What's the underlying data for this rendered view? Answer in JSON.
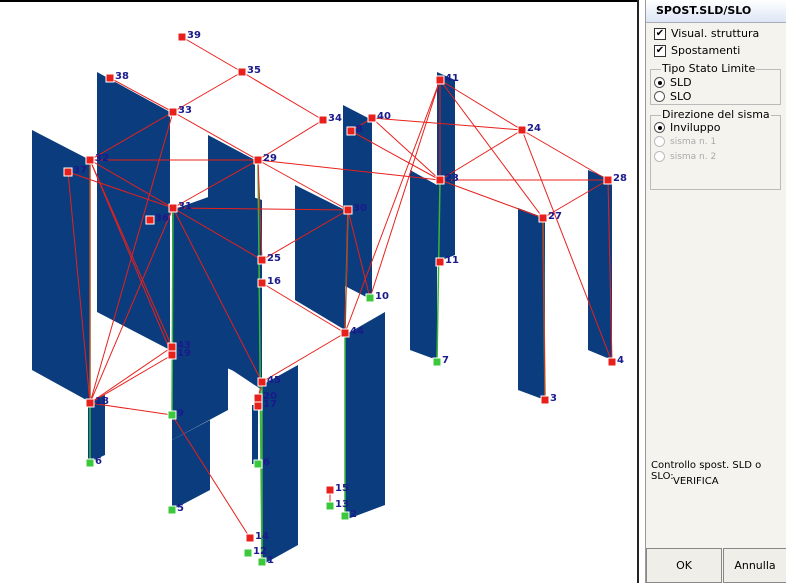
{
  "panel": {
    "title": "SPOST.SLD/SLO",
    "checkboxes": [
      "Visual. struttura",
      "Spostamenti"
    ],
    "limit_state": {
      "title": "Tipo Stato Limite",
      "options": [
        "SLD",
        "SLO"
      ]
    },
    "direction": {
      "title": "Direzione del sisma",
      "options": [
        "Inviluppo",
        "sisma n. 1",
        "sisma n. 2"
      ]
    },
    "status": [
      "Controllo spost. SLD o SLO:",
      "VERIFICA"
    ],
    "buttons": [
      "OK",
      "Annulla"
    ]
  },
  "view": {
    "node_labels": [
      "39",
      "38",
      "35",
      "33",
      "34",
      "40",
      "8",
      "41",
      "24",
      "32",
      "37",
      "29",
      "23",
      "28",
      "31",
      "30",
      "36",
      "27",
      "25",
      "11",
      "16",
      "10",
      "44",
      "43",
      "19",
      "7",
      "4",
      "18",
      "45",
      "20",
      "17",
      "3",
      "9",
      "6",
      "6",
      "15",
      "13",
      "2",
      "5",
      "14",
      "12",
      "1"
    ]
  }
}
